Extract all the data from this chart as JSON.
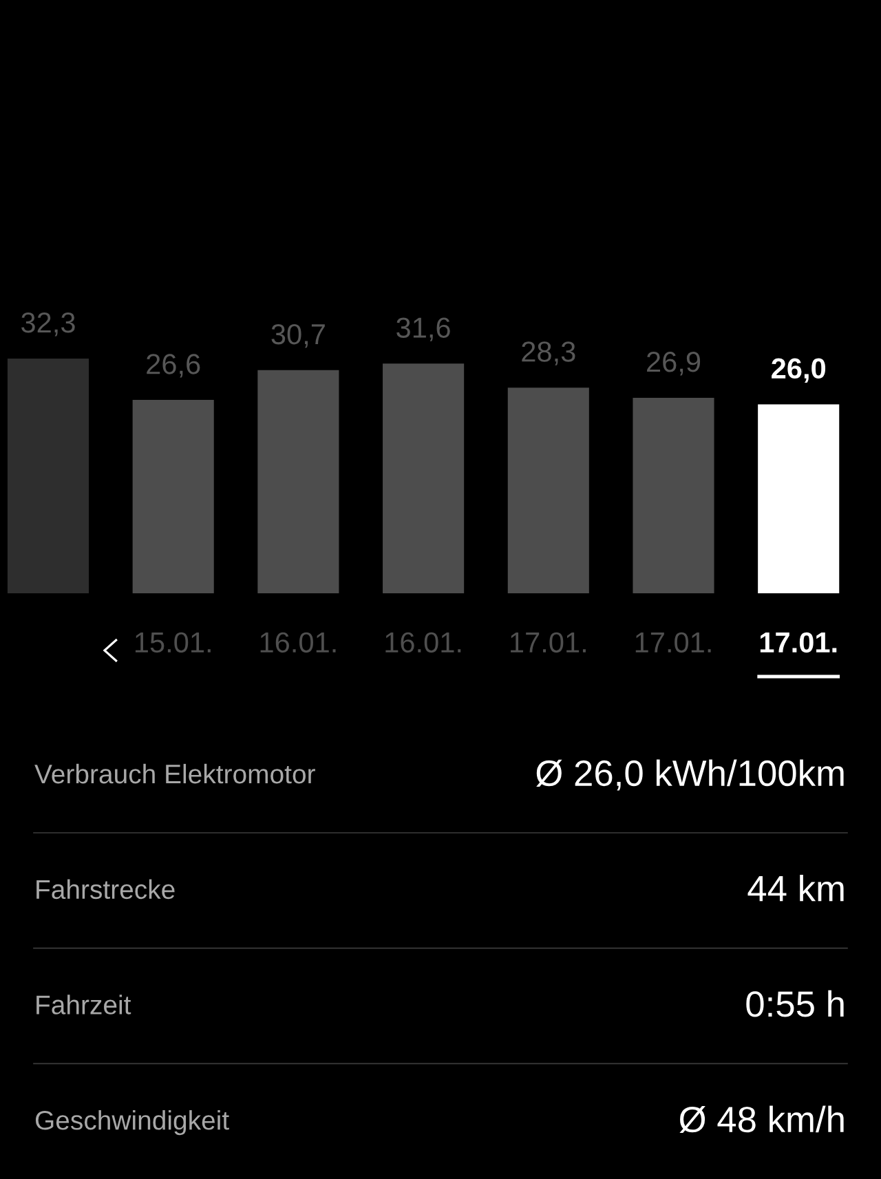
{
  "chart_data": {
    "type": "bar",
    "categories": [
      null,
      "15.01.",
      "16.01.",
      "16.01.",
      "17.01.",
      "17.01.",
      "17.01."
    ],
    "values": [
      32.3,
      26.6,
      30.7,
      31.6,
      28.3,
      26.9,
      26.0
    ],
    "value_labels": [
      "32,3",
      "26,6",
      "30,7",
      "31,6",
      "28,3",
      "26,9",
      "26,0"
    ],
    "colors": [
      "#2e2e2e",
      "#4d4d4d",
      "#4d4d4d",
      "#4d4d4d",
      "#4d4d4d",
      "#4d4d4d",
      "#ffffff"
    ],
    "annotations": [
      "Verbrauch Elektromotor",
      "Ø 26,0 kWh/100km",
      "Fahrstrecke",
      "44 km",
      "Fahrzeit",
      "0:55 h",
      "Geschwindigkeit",
      "Ø 48 km/h"
    ]
  }
}
